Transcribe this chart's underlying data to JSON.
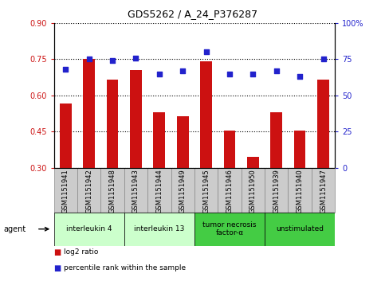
{
  "title": "GDS5262 / A_24_P376287",
  "samples": [
    "GSM1151941",
    "GSM1151942",
    "GSM1151948",
    "GSM1151943",
    "GSM1151944",
    "GSM1151949",
    "GSM1151945",
    "GSM1151946",
    "GSM1151950",
    "GSM1151939",
    "GSM1151940",
    "GSM1151947"
  ],
  "log2_ratio": [
    0.565,
    0.75,
    0.665,
    0.705,
    0.53,
    0.515,
    0.74,
    0.455,
    0.345,
    0.53,
    0.455,
    0.665
  ],
  "percentile_rank": [
    68,
    75,
    74,
    76,
    65,
    67,
    80,
    65,
    65,
    67,
    63,
    75
  ],
  "bar_color": "#cc1111",
  "dot_color": "#2222cc",
  "left_ylim": [
    0.3,
    0.9
  ],
  "left_yticks": [
    0.3,
    0.45,
    0.6,
    0.75,
    0.9
  ],
  "right_ylim": [
    0,
    100
  ],
  "right_yticks": [
    0,
    25,
    50,
    75,
    100
  ],
  "right_yticklabels": [
    "0",
    "25",
    "50",
    "75",
    "100%"
  ],
  "agent_groups": [
    {
      "label": "interleukin 4",
      "start": 0,
      "end": 3,
      "color": "#ccffcc"
    },
    {
      "label": "interleukin 13",
      "start": 3,
      "end": 6,
      "color": "#ccffcc"
    },
    {
      "label": "tumor necrosis\nfactor-α",
      "start": 6,
      "end": 9,
      "color": "#44cc44"
    },
    {
      "label": "unstimulated",
      "start": 9,
      "end": 12,
      "color": "#44cc44"
    }
  ],
  "legend_items": [
    {
      "label": "log2 ratio",
      "color": "#cc1111"
    },
    {
      "label": "percentile rank within the sample",
      "color": "#2222cc"
    }
  ],
  "agent_label": "agent",
  "bar_width": 0.5,
  "tick_label_fontsize": 6.0,
  "axis_label_color_left": "#cc1111",
  "axis_label_color_right": "#2222cc",
  "sample_box_color": "#cccccc",
  "sample_box_edge": "#888888"
}
